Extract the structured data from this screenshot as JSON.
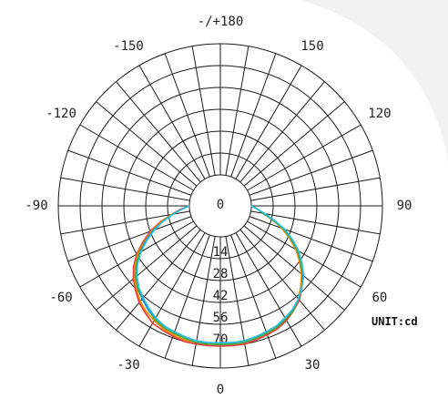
{
  "chart_data": {
    "type": "polar",
    "unit_label": "UNIT:cd",
    "r_ticks": [
      "0",
      "14",
      "28",
      "42",
      "56",
      "70"
    ],
    "r_max": 84,
    "angle_labels": [
      {
        "deg": 0,
        "text": "0"
      },
      {
        "deg": 30,
        "text": "30"
      },
      {
        "deg": 60,
        "text": "60"
      },
      {
        "deg": 90,
        "text": "90"
      },
      {
        "deg": 120,
        "text": "120"
      },
      {
        "deg": 150,
        "text": "150"
      },
      {
        "deg": 180,
        "text": "-/+180"
      },
      {
        "deg": -150,
        "text": "-150"
      },
      {
        "deg": -120,
        "text": "-120"
      },
      {
        "deg": -90,
        "text": "-90"
      },
      {
        "deg": -60,
        "text": "-60"
      },
      {
        "deg": -30,
        "text": "-30"
      }
    ],
    "grid_step_deg": 10,
    "background_color": "#ffffff",
    "accent_shape_color": "#f2f2f2",
    "series": [
      {
        "color": "#e53935",
        "points": [
          [
            -90,
            0
          ],
          [
            -85,
            6
          ],
          [
            -80,
            12
          ],
          [
            -75,
            20
          ],
          [
            -70,
            28
          ],
          [
            -65,
            35
          ],
          [
            -60,
            42
          ],
          [
            -55,
            48
          ],
          [
            -50,
            53
          ],
          [
            -45,
            57
          ],
          [
            -40,
            61
          ],
          [
            -35,
            64
          ],
          [
            -30,
            67
          ],
          [
            -25,
            68
          ],
          [
            -20,
            69
          ],
          [
            -15,
            70
          ],
          [
            -10,
            70
          ],
          [
            -5,
            70
          ],
          [
            0,
            70
          ],
          [
            5,
            70
          ],
          [
            10,
            70
          ],
          [
            15,
            69
          ],
          [
            20,
            68
          ],
          [
            25,
            67
          ],
          [
            30,
            65
          ],
          [
            35,
            62
          ],
          [
            40,
            59
          ],
          [
            45,
            54
          ],
          [
            50,
            49
          ],
          [
            55,
            43
          ],
          [
            60,
            37
          ],
          [
            65,
            30
          ],
          [
            70,
            23
          ],
          [
            75,
            15
          ],
          [
            80,
            8
          ],
          [
            85,
            4
          ],
          [
            90,
            0
          ]
        ]
      },
      {
        "color": "#fb8c00",
        "points": [
          [
            -90,
            0
          ],
          [
            -85,
            5
          ],
          [
            -80,
            12
          ],
          [
            -75,
            19
          ],
          [
            -70,
            27
          ],
          [
            -65,
            34
          ],
          [
            -60,
            41
          ],
          [
            -55,
            47
          ],
          [
            -50,
            52
          ],
          [
            -45,
            56
          ],
          [
            -40,
            60
          ],
          [
            -35,
            63
          ],
          [
            -30,
            65
          ],
          [
            -25,
            67
          ],
          [
            -20,
            68
          ],
          [
            -15,
            69
          ],
          [
            -10,
            69
          ],
          [
            -5,
            69
          ],
          [
            0,
            69
          ],
          [
            5,
            69
          ],
          [
            10,
            69
          ],
          [
            15,
            68
          ],
          [
            20,
            67
          ],
          [
            25,
            66
          ],
          [
            30,
            64
          ],
          [
            35,
            61
          ],
          [
            40,
            58
          ],
          [
            45,
            53
          ],
          [
            50,
            48
          ],
          [
            55,
            42
          ],
          [
            60,
            36
          ],
          [
            65,
            29
          ],
          [
            70,
            22
          ],
          [
            75,
            15
          ],
          [
            80,
            8
          ],
          [
            85,
            4
          ],
          [
            90,
            0
          ]
        ]
      },
      {
        "color": "#43a047",
        "points": [
          [
            -90,
            0
          ],
          [
            -85,
            5
          ],
          [
            -80,
            11
          ],
          [
            -75,
            18
          ],
          [
            -70,
            26
          ],
          [
            -65,
            33
          ],
          [
            -60,
            40
          ],
          [
            -55,
            46
          ],
          [
            -50,
            51
          ],
          [
            -45,
            55
          ],
          [
            -40,
            58
          ],
          [
            -35,
            61
          ],
          [
            -30,
            64
          ],
          [
            -25,
            66
          ],
          [
            -20,
            67
          ],
          [
            -15,
            68
          ],
          [
            -10,
            69
          ],
          [
            -5,
            69
          ],
          [
            0,
            69
          ],
          [
            5,
            69
          ],
          [
            10,
            69
          ],
          [
            15,
            68
          ],
          [
            20,
            67
          ],
          [
            25,
            66
          ],
          [
            30,
            64
          ],
          [
            35,
            62
          ],
          [
            40,
            58
          ],
          [
            45,
            54
          ],
          [
            50,
            49
          ],
          [
            55,
            43
          ],
          [
            60,
            37
          ],
          [
            65,
            30
          ],
          [
            70,
            23
          ],
          [
            75,
            15
          ],
          [
            80,
            8
          ],
          [
            85,
            4
          ],
          [
            90,
            0
          ]
        ]
      },
      {
        "color": "#1e88e5",
        "points": [
          [
            -90,
            0
          ],
          [
            -85,
            5
          ],
          [
            -80,
            11
          ],
          [
            -75,
            18
          ],
          [
            -70,
            26
          ],
          [
            -65,
            33
          ],
          [
            -60,
            39
          ],
          [
            -55,
            45
          ],
          [
            -50,
            50
          ],
          [
            -45,
            54
          ],
          [
            -40,
            58
          ],
          [
            -35,
            61
          ],
          [
            -30,
            63
          ],
          [
            -25,
            65
          ],
          [
            -20,
            66
          ],
          [
            -15,
            67
          ],
          [
            -10,
            68
          ],
          [
            -5,
            68
          ],
          [
            0,
            68
          ],
          [
            5,
            68
          ],
          [
            10,
            68
          ],
          [
            15,
            67
          ],
          [
            20,
            66
          ],
          [
            25,
            65
          ],
          [
            30,
            63
          ],
          [
            35,
            61
          ],
          [
            40,
            58
          ],
          [
            45,
            54
          ],
          [
            50,
            49
          ],
          [
            55,
            44
          ],
          [
            60,
            38
          ],
          [
            65,
            31
          ],
          [
            70,
            24
          ],
          [
            75,
            16
          ],
          [
            80,
            9
          ],
          [
            85,
            4
          ],
          [
            90,
            0
          ]
        ]
      },
      {
        "color": "#26c6da",
        "points": [
          [
            -90,
            0
          ],
          [
            -85,
            5
          ],
          [
            -80,
            11
          ],
          [
            -75,
            18
          ],
          [
            -70,
            25
          ],
          [
            -65,
            32
          ],
          [
            -60,
            39
          ],
          [
            -55,
            45
          ],
          [
            -50,
            50
          ],
          [
            -45,
            54
          ],
          [
            -40,
            57
          ],
          [
            -35,
            60
          ],
          [
            -30,
            63
          ],
          [
            -25,
            65
          ],
          [
            -20,
            66
          ],
          [
            -15,
            67
          ],
          [
            -10,
            68
          ],
          [
            -5,
            68
          ],
          [
            0,
            68
          ],
          [
            5,
            68
          ],
          [
            10,
            68
          ],
          [
            15,
            67
          ],
          [
            20,
            66
          ],
          [
            25,
            65
          ],
          [
            30,
            63
          ],
          [
            35,
            61
          ],
          [
            40,
            58
          ],
          [
            45,
            54
          ],
          [
            50,
            50
          ],
          [
            55,
            44
          ],
          [
            60,
            38
          ],
          [
            65,
            31
          ],
          [
            70,
            24
          ],
          [
            75,
            16
          ],
          [
            80,
            9
          ],
          [
            85,
            4
          ],
          [
            90,
            0
          ]
        ]
      }
    ]
  }
}
